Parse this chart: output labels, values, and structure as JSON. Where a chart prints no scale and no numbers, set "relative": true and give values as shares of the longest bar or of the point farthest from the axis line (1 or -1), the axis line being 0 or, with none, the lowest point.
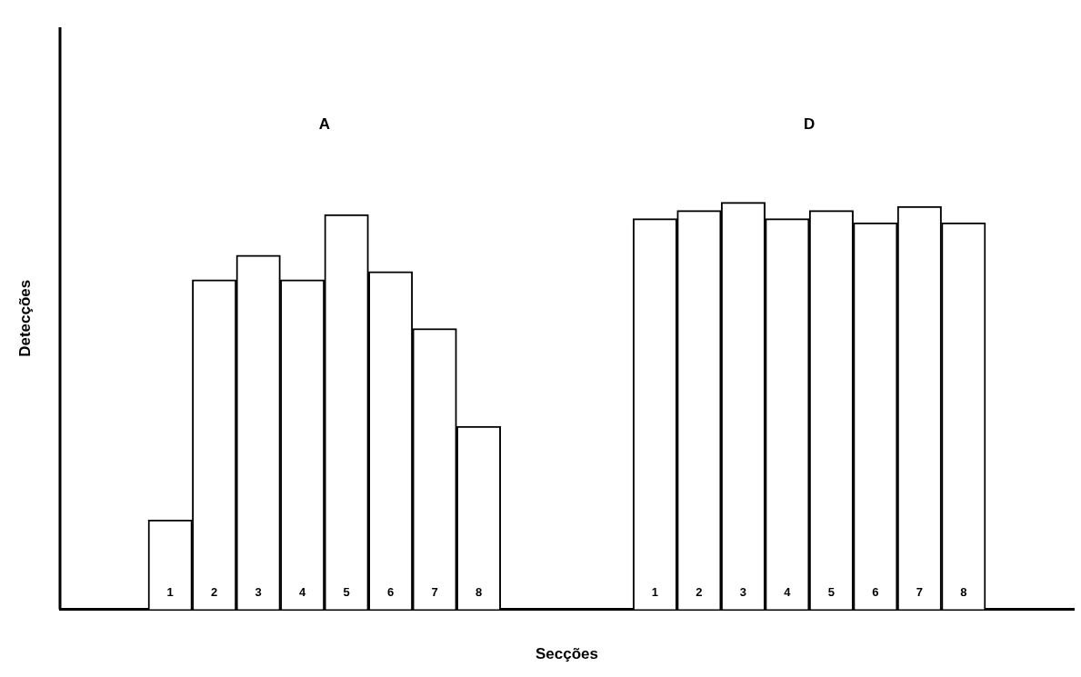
{
  "chart_data": {
    "type": "bar",
    "relative": true,
    "xlabel": "Secções",
    "ylabel": "Detecções",
    "tick_labels": "x",
    "grid": false,
    "legend": false,
    "categories": [
      null,
      null,
      "1",
      "2",
      "3",
      "4",
      "5",
      "6",
      "7",
      "8",
      null,
      null,
      null,
      "1",
      "2",
      "3",
      "4",
      "5",
      "6",
      "7",
      "8",
      null,
      null
    ],
    "values": [
      null,
      null,
      0.22,
      0.81,
      0.87,
      0.81,
      0.97,
      0.83,
      0.69,
      0.45,
      null,
      null,
      null,
      0.96,
      0.98,
      1,
      0.96,
      0.98,
      0.95,
      0.99,
      0.95,
      null,
      null
    ],
    "color": "#ffffff",
    "annotations": [
      "A",
      "D"
    ]
  }
}
